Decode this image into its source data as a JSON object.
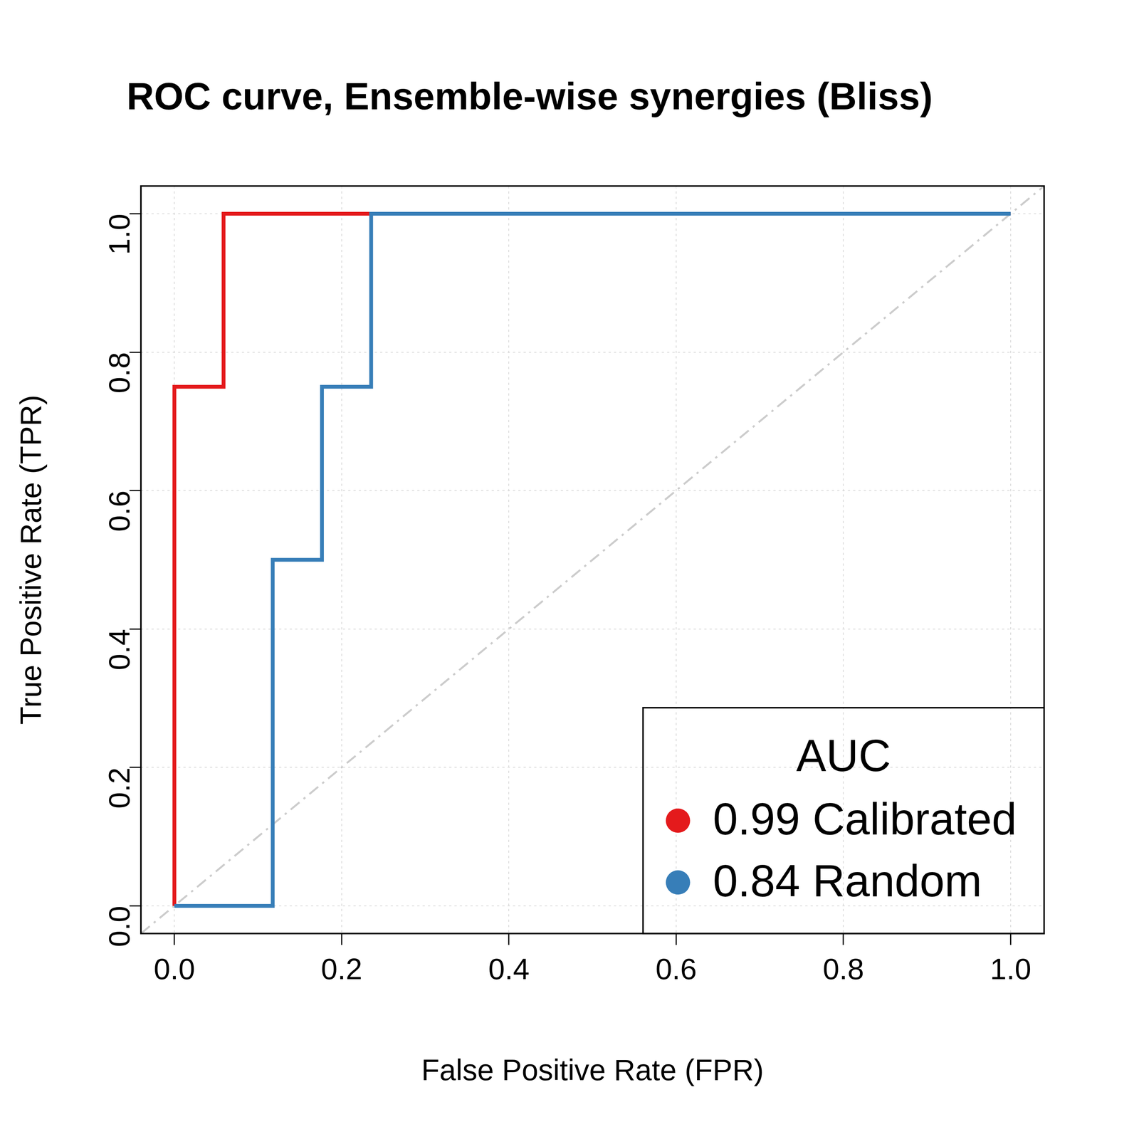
{
  "chart_data": {
    "type": "line",
    "title": "ROC curve, Ensemble-wise synergies (Bliss)",
    "x_label": "False Positive Rate (FPR)",
    "y_label": "True Positive Rate (TPR)",
    "legend_title": "AUC",
    "legend": "bottom right",
    "grid": true,
    "marker": "none",
    "series": [
      {
        "name": "0.99 Calibrated",
        "color": "#e41a1c",
        "x": [
          0,
          0,
          0.0588,
          0.0588,
          0.2353,
          1
        ],
        "values": [
          0,
          0.75,
          0.75,
          1,
          1,
          1
        ]
      },
      {
        "name": "0.84 Random",
        "color": "#377eb8",
        "x": [
          0,
          0.1176,
          0.1176,
          0.1765,
          0.1765,
          0.2353,
          0.2353,
          1
        ],
        "values": [
          0,
          0,
          0.5,
          0.5,
          0.75,
          0.75,
          1,
          1
        ]
      }
    ],
    "xlim": [
      -0.04,
      1.04
    ],
    "ylim": [
      -0.04,
      1.04
    ],
    "xticks": [
      {
        "value": 0,
        "label": "0.0"
      },
      {
        "value": 0.2,
        "label": "0.2"
      },
      {
        "value": 0.4,
        "label": "0.4"
      },
      {
        "value": 0.6,
        "label": "0.6"
      },
      {
        "value": 0.8,
        "label": "0.8"
      },
      {
        "value": 1,
        "label": "1.0"
      }
    ],
    "yticks": [
      {
        "value": 0,
        "label": "0.0"
      },
      {
        "value": 0.2,
        "label": "0.2"
      },
      {
        "value": 0.4,
        "label": "0.4"
      },
      {
        "value": 0.6,
        "label": "0.6"
      },
      {
        "value": 0.8,
        "label": "0.8"
      },
      {
        "value": 1,
        "label": "1.0"
      }
    ]
  }
}
